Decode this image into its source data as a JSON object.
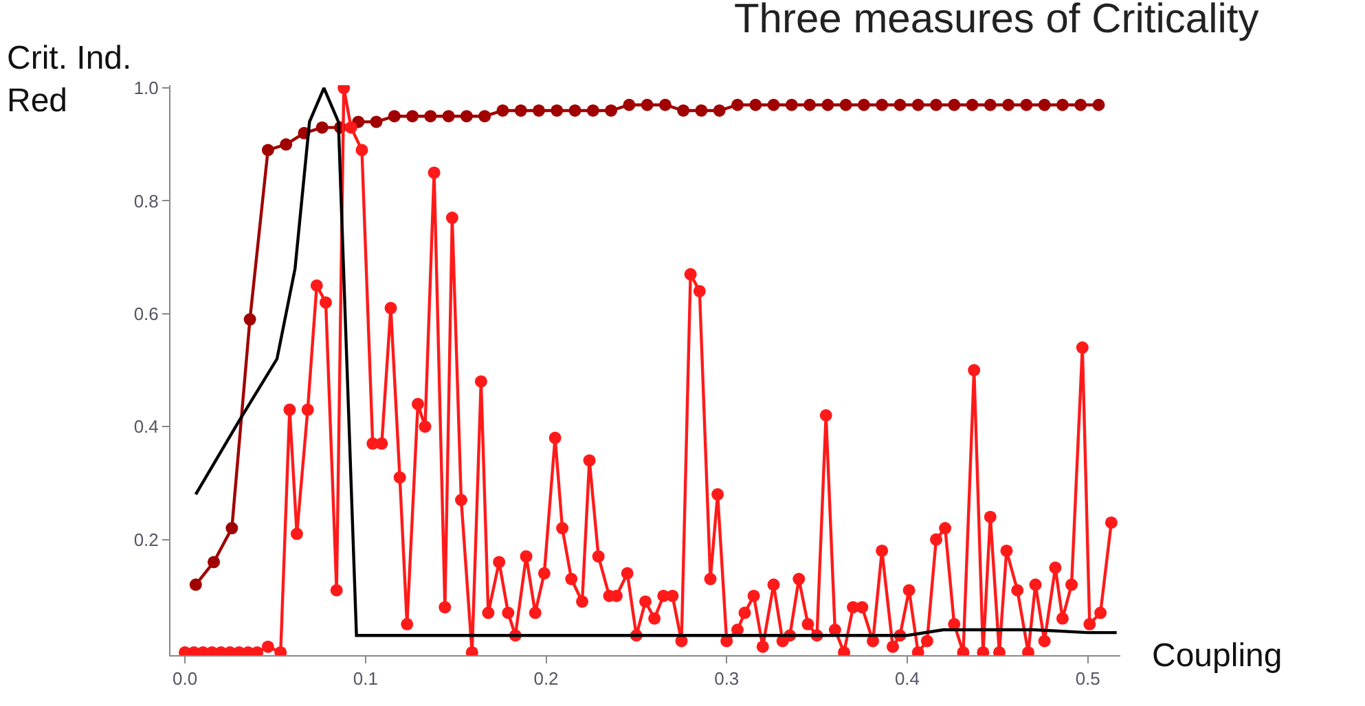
{
  "chart_data": {
    "type": "line",
    "title": "Three measures of Criticality",
    "xlabel": "Coupling",
    "ylabel": "Crit. Ind.\nRed",
    "xlim": [
      -0.008,
      0.518
    ],
    "ylim": [
      -0.005,
      1.005
    ],
    "xticks": [
      {
        "value": 0,
        "label": "0.0"
      },
      0.1,
      0.2,
      0.3,
      0.4,
      0.5
    ],
    "yticks": [
      0.2,
      0.4,
      0.6,
      0.8,
      {
        "value": 1,
        "label": "1.0"
      }
    ],
    "series": [
      {
        "color": "#a00000",
        "marker": "circle",
        "x": [
          0.006,
          0.016,
          0.026,
          0.036,
          0.046,
          0.056,
          0.066,
          0.076,
          0.086,
          0.096,
          0.106,
          0.116,
          0.126,
          0.136,
          0.146,
          0.156,
          0.166,
          0.176,
          0.186,
          0.196,
          0.206,
          0.216,
          0.226,
          0.236,
          0.246,
          0.256,
          0.266,
          0.276,
          0.286,
          0.296,
          0.306,
          0.316,
          0.326,
          0.336,
          0.346,
          0.356,
          0.366,
          0.376,
          0.386,
          0.396,
          0.406,
          0.416,
          0.426,
          0.436,
          0.446,
          0.456,
          0.466,
          0.476,
          0.486,
          0.496,
          0.506
        ],
        "values": [
          0.12,
          0.16,
          0.22,
          0.59,
          0.89,
          0.9,
          0.92,
          0.93,
          0.93,
          0.94,
          0.94,
          0.95,
          0.95,
          0.95,
          0.95,
          0.95,
          0.95,
          0.96,
          0.96,
          0.96,
          0.96,
          0.96,
          0.96,
          0.96,
          0.97,
          0.97,
          0.97,
          0.96,
          0.96,
          0.96,
          0.97,
          0.97,
          0.97,
          0.97,
          0.97,
          0.97,
          0.97,
          0.97,
          0.97,
          0.97,
          0.97,
          0.97,
          0.97,
          0.97,
          0.97,
          0.97,
          0.97,
          0.97,
          0.97,
          0.97,
          0.97
        ]
      },
      {
        "color": "#ff1a1a",
        "marker": "circle",
        "x": [
          0.0,
          0.005,
          0.01,
          0.015,
          0.02,
          0.025,
          0.03,
          0.035,
          0.04,
          0.046,
          0.053,
          0.058,
          0.062,
          0.068,
          0.073,
          0.078,
          0.084,
          0.088,
          0.092,
          0.098,
          0.104,
          0.109,
          0.114,
          0.119,
          0.123,
          0.129,
          0.133,
          0.138,
          0.144,
          0.148,
          0.153,
          0.159,
          0.164,
          0.168,
          0.174,
          0.179,
          0.183,
          0.189,
          0.194,
          0.199,
          0.205,
          0.209,
          0.214,
          0.22,
          0.224,
          0.229,
          0.235,
          0.239,
          0.245,
          0.25,
          0.255,
          0.26,
          0.265,
          0.27,
          0.275,
          0.28,
          0.285,
          0.291,
          0.295,
          0.3,
          0.306,
          0.31,
          0.315,
          0.32,
          0.326,
          0.331,
          0.335,
          0.34,
          0.345,
          0.35,
          0.355,
          0.36,
          0.365,
          0.37,
          0.375,
          0.381,
          0.386,
          0.392,
          0.396,
          0.401,
          0.406,
          0.411,
          0.416,
          0.421,
          0.426,
          0.431,
          0.437,
          0.442,
          0.446,
          0.451,
          0.455,
          0.461,
          0.467,
          0.471,
          0.476,
          0.482,
          0.486,
          0.491,
          0.497,
          0.501,
          0.507,
          0.513
        ],
        "values": [
          0,
          0,
          0,
          0,
          0,
          0,
          0,
          0,
          0,
          0.01,
          0,
          0.43,
          0.21,
          0.43,
          0.65,
          0.62,
          0.11,
          1.0,
          0.93,
          0.89,
          0.37,
          0.37,
          0.61,
          0.31,
          0.05,
          0.44,
          0.4,
          0.85,
          0.08,
          0.77,
          0.27,
          0,
          0.48,
          0.07,
          0.16,
          0.07,
          0.03,
          0.17,
          0.07,
          0.14,
          0.38,
          0.22,
          0.13,
          0.09,
          0.34,
          0.17,
          0.1,
          0.1,
          0.14,
          0.03,
          0.09,
          0.06,
          0.1,
          0.1,
          0.02,
          0.67,
          0.64,
          0.13,
          0.28,
          0.02,
          0.04,
          0.07,
          0.1,
          0.01,
          0.12,
          0.02,
          0.03,
          0.13,
          0.05,
          0.03,
          0.42,
          0.04,
          0,
          0.08,
          0.08,
          0.02,
          0.18,
          0.01,
          0.03,
          0.11,
          0,
          0.02,
          0.2,
          0.22,
          0.05,
          0,
          0.5,
          0,
          0.24,
          0,
          0.18,
          0.11,
          0,
          0.12,
          0.02,
          0.15,
          0.06,
          0.12,
          0.54,
          0.05,
          0.07,
          0.23
        ]
      },
      {
        "color": "#000000",
        "marker": "none",
        "x": [
          0.006,
          0.03,
          0.051,
          0.061,
          0.069,
          0.077,
          0.085,
          0.095,
          0.2,
          0.3,
          0.4,
          0.42,
          0.47,
          0.5,
          0.516
        ],
        "values": [
          0.28,
          0.41,
          0.52,
          0.68,
          0.94,
          1.0,
          0.94,
          0.03,
          0.03,
          0.03,
          0.03,
          0.04,
          0.04,
          0.035,
          0.035
        ]
      }
    ]
  }
}
